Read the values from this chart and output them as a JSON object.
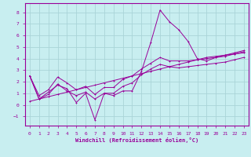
{
  "xlabel": "Windchill (Refroidissement éolien,°C)",
  "bg_color": "#c8eef0",
  "grid_color": "#aad4d8",
  "line_color": "#990099",
  "xlim": [
    -0.5,
    23.5
  ],
  "ylim": [
    -1.8,
    8.8
  ],
  "xticks": [
    0,
    1,
    2,
    3,
    4,
    5,
    6,
    7,
    8,
    9,
    10,
    11,
    12,
    13,
    14,
    15,
    16,
    17,
    18,
    19,
    20,
    21,
    22,
    23
  ],
  "yticks": [
    -1,
    0,
    1,
    2,
    3,
    4,
    5,
    6,
    7,
    8
  ],
  "data_main": [
    2.5,
    0.5,
    1.1,
    1.7,
    1.4,
    0.2,
    1.0,
    -1.3,
    1.0,
    0.8,
    1.2,
    1.2,
    2.9,
    5.4,
    8.2,
    7.2,
    6.5,
    5.5,
    4.0,
    3.8,
    4.1,
    4.3,
    4.5,
    4.7
  ],
  "data_upper": [
    2.5,
    0.8,
    1.3,
    2.4,
    1.9,
    1.3,
    1.6,
    0.9,
    1.5,
    1.5,
    2.2,
    2.5,
    3.1,
    3.6,
    4.1,
    3.8,
    3.8,
    3.8,
    3.9,
    4.0,
    4.1,
    4.2,
    4.4,
    4.6
  ],
  "data_lower": [
    2.5,
    0.5,
    0.9,
    1.8,
    1.2,
    0.8,
    1.1,
    0.5,
    1.0,
    1.0,
    1.6,
    1.9,
    2.6,
    3.1,
    3.5,
    3.3,
    3.2,
    3.3,
    3.4,
    3.5,
    3.6,
    3.7,
    3.9,
    4.1
  ],
  "data_trend": [
    0.3,
    0.5,
    0.7,
    0.9,
    1.1,
    1.3,
    1.5,
    1.7,
    1.9,
    2.1,
    2.3,
    2.5,
    2.7,
    2.9,
    3.1,
    3.3,
    3.5,
    3.7,
    3.9,
    4.1,
    4.2,
    4.3,
    4.4,
    4.5
  ]
}
